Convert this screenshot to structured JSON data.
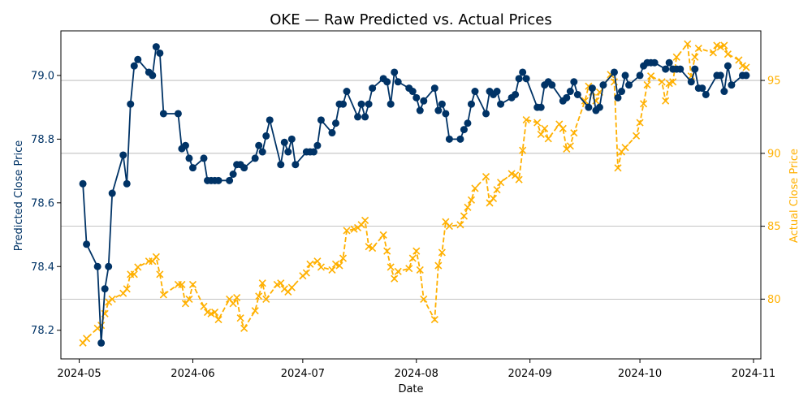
{
  "chart_data": {
    "type": "line",
    "title": "OKE — Raw Predicted vs. Actual Prices",
    "xlabel": "Date",
    "ylabel_left": "Predicted Close Price",
    "ylabel_right": "Actual Close Price",
    "x_ticks": [
      "2024-05",
      "2024-06",
      "2024-07",
      "2024-08",
      "2024-09",
      "2024-10",
      "2024-11"
    ],
    "y_left_ticks": [
      "78.2",
      "78.4",
      "78.6",
      "78.8",
      "79.0"
    ],
    "y_right_ticks": [
      "80",
      "85",
      "90",
      "95"
    ],
    "y_left_range": [
      78.11,
      79.14
    ],
    "y_right_range": [
      75.9,
      98.4
    ],
    "x_range": [
      "2024-04-26",
      "2024-11-03"
    ],
    "grid": "horizontal gridlines at right-axis ticks",
    "colors": {
      "predicted": "#003366",
      "actual": "#ffb000"
    },
    "series": [
      {
        "name": "Predicted",
        "axis": "left",
        "style": "solid line with circle markers",
        "points": [
          [
            "2024-05-02",
            78.66
          ],
          [
            "2024-05-03",
            78.47
          ],
          [
            "2024-05-06",
            78.4
          ],
          [
            "2024-05-07",
            78.16
          ],
          [
            "2024-05-08",
            78.33
          ],
          [
            "2024-05-09",
            78.4
          ],
          [
            "2024-05-10",
            78.63
          ],
          [
            "2024-05-13",
            78.75
          ],
          [
            "2024-05-14",
            78.66
          ],
          [
            "2024-05-15",
            78.91
          ],
          [
            "2024-05-16",
            79.03
          ],
          [
            "2024-05-17",
            79.05
          ],
          [
            "2024-05-20",
            79.01
          ],
          [
            "2024-05-21",
            79.0
          ],
          [
            "2024-05-22",
            79.09
          ],
          [
            "2024-05-23",
            79.07
          ],
          [
            "2024-05-24",
            78.88
          ],
          [
            "2024-05-28",
            78.88
          ],
          [
            "2024-05-29",
            78.77
          ],
          [
            "2024-05-30",
            78.78
          ],
          [
            "2024-05-31",
            78.74
          ],
          [
            "2024-06-01",
            78.71
          ],
          [
            "2024-06-04",
            78.74
          ],
          [
            "2024-06-05",
            78.67
          ],
          [
            "2024-06-06",
            78.67
          ],
          [
            "2024-06-07",
            78.67
          ],
          [
            "2024-06-08",
            78.67
          ],
          [
            "2024-06-11",
            78.67
          ],
          [
            "2024-06-12",
            78.69
          ],
          [
            "2024-06-13",
            78.72
          ],
          [
            "2024-06-14",
            78.72
          ],
          [
            "2024-06-15",
            78.71
          ],
          [
            "2024-06-18",
            78.74
          ],
          [
            "2024-06-19",
            78.78
          ],
          [
            "2024-06-20",
            78.76
          ],
          [
            "2024-06-21",
            78.81
          ],
          [
            "2024-06-22",
            78.86
          ],
          [
            "2024-06-25",
            78.72
          ],
          [
            "2024-06-26",
            78.79
          ],
          [
            "2024-06-27",
            78.76
          ],
          [
            "2024-06-28",
            78.8
          ],
          [
            "2024-06-29",
            78.72
          ],
          [
            "2024-07-02",
            78.76
          ],
          [
            "2024-07-03",
            78.76
          ],
          [
            "2024-07-04",
            78.76
          ],
          [
            "2024-07-05",
            78.78
          ],
          [
            "2024-07-06",
            78.86
          ],
          [
            "2024-07-09",
            78.82
          ],
          [
            "2024-07-10",
            78.85
          ],
          [
            "2024-07-11",
            78.91
          ],
          [
            "2024-07-12",
            78.91
          ],
          [
            "2024-07-13",
            78.95
          ],
          [
            "2024-07-16",
            78.87
          ],
          [
            "2024-07-17",
            78.91
          ],
          [
            "2024-07-18",
            78.87
          ],
          [
            "2024-07-19",
            78.91
          ],
          [
            "2024-07-20",
            78.96
          ],
          [
            "2024-07-23",
            78.99
          ],
          [
            "2024-07-24",
            78.98
          ],
          [
            "2024-07-25",
            78.91
          ],
          [
            "2024-07-26",
            79.01
          ],
          [
            "2024-07-27",
            78.98
          ],
          [
            "2024-07-30",
            78.96
          ],
          [
            "2024-07-31",
            78.95
          ],
          [
            "2024-08-01",
            78.93
          ],
          [
            "2024-08-02",
            78.89
          ],
          [
            "2024-08-03",
            78.92
          ],
          [
            "2024-08-06",
            78.96
          ],
          [
            "2024-08-07",
            78.89
          ],
          [
            "2024-08-08",
            78.91
          ],
          [
            "2024-08-09",
            78.88
          ],
          [
            "2024-08-10",
            78.8
          ],
          [
            "2024-08-13",
            78.8
          ],
          [
            "2024-08-14",
            78.83
          ],
          [
            "2024-08-15",
            78.85
          ],
          [
            "2024-08-16",
            78.91
          ],
          [
            "2024-08-17",
            78.95
          ],
          [
            "2024-08-20",
            78.88
          ],
          [
            "2024-08-21",
            78.95
          ],
          [
            "2024-08-22",
            78.94
          ],
          [
            "2024-08-23",
            78.95
          ],
          [
            "2024-08-24",
            78.91
          ],
          [
            "2024-08-27",
            78.93
          ],
          [
            "2024-08-28",
            78.94
          ],
          [
            "2024-08-29",
            78.99
          ],
          [
            "2024-08-30",
            79.01
          ],
          [
            "2024-08-31",
            78.99
          ],
          [
            "2024-09-03",
            78.9
          ],
          [
            "2024-09-04",
            78.9
          ],
          [
            "2024-09-05",
            78.97
          ],
          [
            "2024-09-06",
            78.98
          ],
          [
            "2024-09-07",
            78.97
          ],
          [
            "2024-09-10",
            78.92
          ],
          [
            "2024-09-11",
            78.93
          ],
          [
            "2024-09-12",
            78.95
          ],
          [
            "2024-09-13",
            78.98
          ],
          [
            "2024-09-14",
            78.94
          ],
          [
            "2024-09-17",
            78.9
          ],
          [
            "2024-09-18",
            78.96
          ],
          [
            "2024-09-19",
            78.89
          ],
          [
            "2024-09-20",
            78.9
          ],
          [
            "2024-09-21",
            78.97
          ],
          [
            "2024-09-24",
            79.01
          ],
          [
            "2024-09-25",
            78.93
          ],
          [
            "2024-09-26",
            78.95
          ],
          [
            "2024-09-27",
            79.0
          ],
          [
            "2024-09-28",
            78.97
          ],
          [
            "2024-10-01",
            79.0
          ],
          [
            "2024-10-02",
            79.03
          ],
          [
            "2024-10-03",
            79.04
          ],
          [
            "2024-10-04",
            79.04
          ],
          [
            "2024-10-05",
            79.04
          ],
          [
            "2024-10-08",
            79.02
          ],
          [
            "2024-10-09",
            79.04
          ],
          [
            "2024-10-10",
            79.02
          ],
          [
            "2024-10-11",
            79.02
          ],
          [
            "2024-10-12",
            79.02
          ],
          [
            "2024-10-15",
            78.98
          ],
          [
            "2024-10-16",
            79.02
          ],
          [
            "2024-10-17",
            78.96
          ],
          [
            "2024-10-18",
            78.96
          ],
          [
            "2024-10-19",
            78.94
          ],
          [
            "2024-10-22",
            79.0
          ],
          [
            "2024-10-23",
            79.0
          ],
          [
            "2024-10-24",
            78.95
          ],
          [
            "2024-10-25",
            79.03
          ],
          [
            "2024-10-26",
            78.97
          ],
          [
            "2024-10-29",
            79.0
          ],
          [
            "2024-10-30",
            79.0
          ]
        ]
      },
      {
        "name": "Actual",
        "axis": "right",
        "style": "dashed line with x markers",
        "points": [
          [
            "2024-05-02",
            77.0
          ],
          [
            "2024-05-03",
            77.3
          ],
          [
            "2024-05-06",
            78.0
          ],
          [
            "2024-05-07",
            78.2
          ],
          [
            "2024-05-08",
            79.0
          ],
          [
            "2024-05-09",
            79.8
          ],
          [
            "2024-05-10",
            80.0
          ],
          [
            "2024-05-13",
            80.4
          ],
          [
            "2024-05-14",
            80.7
          ],
          [
            "2024-05-15",
            81.7
          ],
          [
            "2024-05-16",
            81.7
          ],
          [
            "2024-05-17",
            82.2
          ],
          [
            "2024-05-20",
            82.6
          ],
          [
            "2024-05-21",
            82.6
          ],
          [
            "2024-05-22",
            82.9
          ],
          [
            "2024-05-23",
            81.7
          ],
          [
            "2024-05-24",
            80.3
          ],
          [
            "2024-05-28",
            81.0
          ],
          [
            "2024-05-29",
            81.0
          ],
          [
            "2024-05-30",
            79.7
          ],
          [
            "2024-05-31",
            80.0
          ],
          [
            "2024-06-01",
            81.0
          ],
          [
            "2024-06-04",
            79.5
          ],
          [
            "2024-06-05",
            79.1
          ],
          [
            "2024-06-06",
            79.0
          ],
          [
            "2024-06-07",
            79.1
          ],
          [
            "2024-06-08",
            78.6
          ],
          [
            "2024-06-11",
            80.0
          ],
          [
            "2024-06-12",
            79.7
          ],
          [
            "2024-06-13",
            80.1
          ],
          [
            "2024-06-14",
            78.7
          ],
          [
            "2024-06-15",
            78.0
          ],
          [
            "2024-06-18",
            79.2
          ],
          [
            "2024-06-19",
            80.2
          ],
          [
            "2024-06-20",
            81.1
          ],
          [
            "2024-06-21",
            80.0
          ],
          [
            "2024-06-24",
            81.0
          ],
          [
            "2024-06-25",
            81.1
          ],
          [
            "2024-06-26",
            80.7
          ],
          [
            "2024-06-27",
            80.5
          ],
          [
            "2024-06-28",
            80.8
          ],
          [
            "2024-07-01",
            81.6
          ],
          [
            "2024-07-02",
            81.8
          ],
          [
            "2024-07-03",
            82.4
          ],
          [
            "2024-07-05",
            82.6
          ],
          [
            "2024-07-06",
            82.2
          ],
          [
            "2024-07-09",
            82.0
          ],
          [
            "2024-07-10",
            82.4
          ],
          [
            "2024-07-11",
            82.3
          ],
          [
            "2024-07-12",
            82.8
          ],
          [
            "2024-07-13",
            84.7
          ],
          [
            "2024-07-15",
            84.8
          ],
          [
            "2024-07-16",
            84.9
          ],
          [
            "2024-07-17",
            85.1
          ],
          [
            "2024-07-18",
            85.4
          ],
          [
            "2024-07-19",
            83.6
          ],
          [
            "2024-07-20",
            83.5
          ],
          [
            "2024-07-23",
            84.4
          ],
          [
            "2024-07-24",
            83.3
          ],
          [
            "2024-07-25",
            82.2
          ],
          [
            "2024-07-26",
            81.4
          ],
          [
            "2024-07-27",
            81.9
          ],
          [
            "2024-07-30",
            82.1
          ],
          [
            "2024-07-31",
            82.8
          ],
          [
            "2024-08-01",
            83.3
          ],
          [
            "2024-08-02",
            82.0
          ],
          [
            "2024-08-03",
            80.0
          ],
          [
            "2024-08-06",
            78.6
          ],
          [
            "2024-08-07",
            82.3
          ],
          [
            "2024-08-08",
            83.2
          ],
          [
            "2024-08-09",
            85.3
          ],
          [
            "2024-08-10",
            85.0
          ],
          [
            "2024-08-13",
            85.1
          ],
          [
            "2024-08-14",
            85.7
          ],
          [
            "2024-08-15",
            86.3
          ],
          [
            "2024-08-16",
            86.8
          ],
          [
            "2024-08-17",
            87.6
          ],
          [
            "2024-08-20",
            88.4
          ],
          [
            "2024-08-21",
            86.6
          ],
          [
            "2024-08-22",
            86.9
          ],
          [
            "2024-08-23",
            87.5
          ],
          [
            "2024-08-24",
            88.0
          ],
          [
            "2024-08-27",
            88.6
          ],
          [
            "2024-08-28",
            88.5
          ],
          [
            "2024-08-29",
            88.2
          ],
          [
            "2024-08-30",
            90.2
          ],
          [
            "2024-08-31",
            92.3
          ],
          [
            "2024-09-03",
            92.1
          ],
          [
            "2024-09-04",
            91.3
          ],
          [
            "2024-09-05",
            91.7
          ],
          [
            "2024-09-06",
            91.0
          ],
          [
            "2024-09-09",
            92.0
          ],
          [
            "2024-09-10",
            91.7
          ],
          [
            "2024-09-11",
            90.3
          ],
          [
            "2024-09-12",
            90.5
          ],
          [
            "2024-09-13",
            91.4
          ],
          [
            "2024-09-16",
            93.6
          ],
          [
            "2024-09-17",
            94.6
          ],
          [
            "2024-09-18",
            94.2
          ],
          [
            "2024-09-19",
            93.6
          ],
          [
            "2024-09-20",
            94.2
          ],
          [
            "2024-09-23",
            95.4
          ],
          [
            "2024-09-24",
            94.9
          ],
          [
            "2024-09-25",
            89.0
          ],
          [
            "2024-09-26",
            90.1
          ],
          [
            "2024-09-27",
            90.4
          ],
          [
            "2024-09-30",
            91.2
          ],
          [
            "2024-10-01",
            92.1
          ],
          [
            "2024-10-02",
            93.4
          ],
          [
            "2024-10-03",
            94.7
          ],
          [
            "2024-10-04",
            95.3
          ],
          [
            "2024-10-07",
            94.9
          ],
          [
            "2024-10-08",
            93.6
          ],
          [
            "2024-10-09",
            94.8
          ],
          [
            "2024-10-10",
            94.9
          ],
          [
            "2024-10-11",
            96.6
          ],
          [
            "2024-10-14",
            97.5
          ],
          [
            "2024-10-15",
            95.3
          ],
          [
            "2024-10-16",
            96.6
          ],
          [
            "2024-10-17",
            97.2
          ],
          [
            "2024-10-21",
            96.9
          ],
          [
            "2024-10-22",
            97.4
          ],
          [
            "2024-10-23",
            97.3
          ],
          [
            "2024-10-24",
            97.4
          ],
          [
            "2024-10-25",
            96.8
          ],
          [
            "2024-10-28",
            96.4
          ],
          [
            "2024-10-29",
            96.0
          ],
          [
            "2024-10-30",
            95.9
          ]
        ]
      }
    ]
  }
}
